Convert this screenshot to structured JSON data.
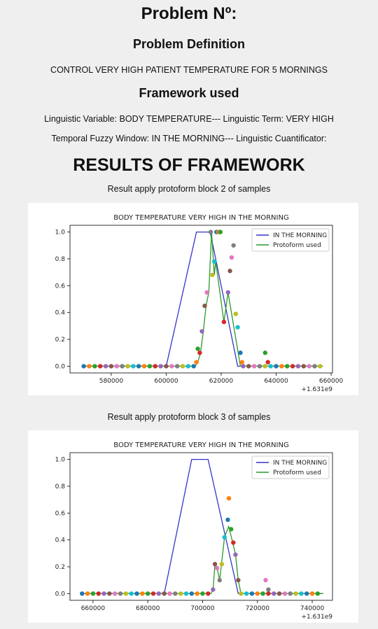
{
  "header": {
    "title": "Problem Nº:",
    "definition_heading": "Problem Definition",
    "definition": "CONTROL VERY HIGH PATIENT TEMPERATURE FOR 5 MORNINGS",
    "framework_heading": "Framework used",
    "variable_line": "Linguistic Variable: BODY TEMPERATURE--- Linguistic Term: VERY HIGH",
    "window_line": "Temporal Fuzzy Window: IN THE MORNING--- Linguistic Cuantificator:",
    "results_heading": "RESULTS OF FRAMEWORK"
  },
  "chart_data": [
    {
      "type": "line",
      "caption": "Result apply protoform block 2 of samples",
      "title": "BODY TEMPERATURE VERY HIGH IN THE MORNING",
      "x_offset_label": "+1.631e9",
      "xlim": [
        565000,
        660500
      ],
      "xticks": [
        580000,
        600000,
        620000,
        640000,
        660000
      ],
      "ylim": [
        -0.05,
        1.05
      ],
      "yticks": [
        {
          "value": 0,
          "label": "0.0"
        },
        {
          "value": 0.2,
          "label": "0.2"
        },
        {
          "value": 0.4,
          "label": "0.4"
        },
        {
          "value": 0.6,
          "label": "0.6"
        },
        {
          "value": 0.8,
          "label": "0.8"
        },
        {
          "value": 1.0,
          "label": "1.0"
        }
      ],
      "legend": "upper right",
      "series": [
        {
          "name": "IN THE MORNING",
          "color": "#3535c8",
          "x": [
            570000,
            600000,
            611000,
            616000,
            626000,
            657000
          ],
          "values": [
            0,
            0,
            1,
            1,
            0,
            0
          ]
        },
        {
          "name": "Protoform used",
          "color": "#2a9a2a",
          "x": [
            570000,
            610500,
            611500,
            612500,
            613500,
            614500,
            615500,
            616500,
            617500,
            618000,
            621000,
            622500,
            627000,
            657000
          ],
          "values": [
            0,
            0,
            0.03,
            0.1,
            0.26,
            0.45,
            0.55,
            1.0,
            0.68,
            0.78,
            0.33,
            0.55,
            0,
            0
          ]
        }
      ],
      "point_colors": [
        "#1f77b4",
        "#ff7f0e",
        "#2ca02c",
        "#d62728",
        "#9467bd",
        "#8c564b",
        "#e377c2",
        "#7f7f7f",
        "#bcbd22",
        "#17becf"
      ],
      "points": {
        "x": [
          570000,
          572000,
          574000,
          576000,
          578000,
          580000,
          582000,
          584000,
          586000,
          588000,
          590000,
          592000,
          594000,
          596000,
          598000,
          600000,
          602000,
          604000,
          606000,
          608000,
          610000,
          611000,
          611500,
          612200,
          613000,
          614000,
          614800,
          616200,
          616800,
          617500,
          618300,
          619000,
          619700,
          621000,
          622500,
          623200,
          623800,
          624500,
          625300,
          626000,
          627000,
          627600,
          636000,
          637000,
          628000,
          630000,
          632000,
          634000,
          636000,
          638000,
          640000,
          642000,
          644000,
          646000,
          648000,
          650000,
          652000,
          654000,
          656000
        ],
        "values": [
          0,
          0,
          0,
          0,
          0,
          0,
          0,
          0,
          0,
          0,
          0,
          0,
          0,
          0,
          0,
          0,
          0,
          0,
          0,
          0,
          0,
          0.03,
          0.13,
          0.1,
          0.26,
          0.45,
          0.55,
          1.0,
          0.68,
          0.78,
          1.0,
          1.0,
          1.0,
          0.33,
          0.55,
          0.71,
          0.81,
          0.9,
          0.39,
          0.29,
          0.1,
          0.03,
          0.1,
          0.03,
          0,
          0,
          0,
          0,
          0,
          0,
          0,
          0,
          0,
          0,
          0,
          0,
          0,
          0,
          0
        ]
      }
    },
    {
      "type": "line",
      "caption": "Result apply protoform block 3 of samples",
      "title": "BODY TEMPERATURE VERY HIGH IN THE MORNING",
      "x_offset_label": "+1.631e9",
      "xlim": [
        651600,
        747400
      ],
      "xticks": [
        660000,
        680000,
        700000,
        720000,
        740000
      ],
      "ylim": [
        -0.05,
        1.05
      ],
      "yticks": [
        {
          "value": 0,
          "label": "0.0"
        },
        {
          "value": 0.2,
          "label": "0.2"
        },
        {
          "value": 0.4,
          "label": "0.4"
        },
        {
          "value": 0.6,
          "label": "0.6"
        },
        {
          "value": 0.8,
          "label": "0.8"
        },
        {
          "value": 1.0,
          "label": "1.0"
        }
      ],
      "legend": "upper right",
      "series": [
        {
          "name": "IN THE MORNING",
          "color": "#3535c8",
          "x": [
            656000,
            686000,
            696000,
            702000,
            713000,
            744000
          ],
          "values": [
            0,
            0,
            1,
            1,
            0,
            0
          ]
        },
        {
          "name": "Protoform used",
          "color": "#2a9a2a",
          "x": [
            656000,
            703000,
            703800,
            704500,
            705300,
            706200,
            708000,
            709500,
            711000,
            712000,
            713000,
            714000,
            744000
          ],
          "values": [
            0,
            0,
            0.03,
            0.22,
            0.19,
            0.1,
            0.42,
            0.5,
            0.38,
            0.29,
            0.1,
            0,
            0
          ]
        }
      ],
      "point_colors": [
        "#1f77b4",
        "#ff7f0e",
        "#2ca02c",
        "#d62728",
        "#9467bd",
        "#8c564b",
        "#e377c2",
        "#7f7f7f",
        "#bcbd22",
        "#17becf"
      ],
      "points": {
        "x": [
          656000,
          658000,
          660000,
          662000,
          664000,
          666000,
          668000,
          670000,
          672000,
          674000,
          676000,
          678000,
          680000,
          682000,
          684000,
          686000,
          688000,
          690000,
          692000,
          694000,
          696000,
          698000,
          700000,
          702000,
          703800,
          704500,
          705300,
          706200,
          707000,
          708000,
          709200,
          709600,
          710400,
          711200,
          712000,
          713000,
          723000,
          724000,
          714000,
          716000,
          718000,
          720000,
          722000,
          724000,
          726000,
          728000,
          730000,
          732000,
          734000,
          736000,
          738000,
          740000,
          742000
        ],
        "values": [
          0,
          0,
          0,
          0,
          0,
          0,
          0,
          0,
          0,
          0,
          0,
          0,
          0,
          0,
          0,
          0,
          0,
          0,
          0,
          0,
          0,
          0,
          0,
          0,
          0.03,
          0.22,
          0.19,
          0.1,
          0.22,
          0.42,
          0.55,
          0.71,
          0.48,
          0.38,
          0.29,
          0.1,
          0.1,
          0.03,
          0,
          0,
          0,
          0,
          0,
          0,
          0,
          0,
          0,
          0,
          0,
          0,
          0,
          0,
          0
        ]
      }
    }
  ]
}
